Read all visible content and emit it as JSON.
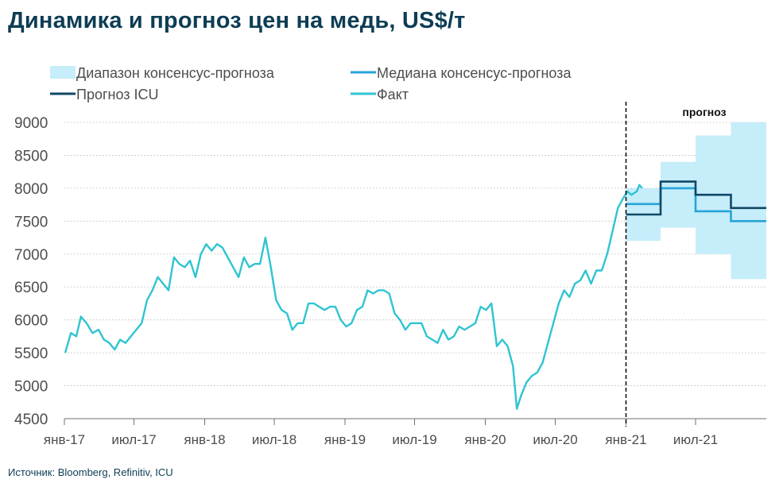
{
  "page": {
    "title": "Динамика и прогноз цен на медь, US$/т",
    "source": "Источник: Bloomberg, Refinitiv, ICU"
  },
  "colors": {
    "fact": "#2fc4d2",
    "median": "#26a4d8",
    "icu": "#0f4866",
    "range": "#c6edfa",
    "grid": "#c8c8c8",
    "text": "#4d4d4d",
    "title": "#0d3d55"
  },
  "chart_data": {
    "type": "line",
    "title": "Динамика и прогноз цен на медь, US$/т",
    "xlabel": "",
    "ylabel": "",
    "ylim": [
      4500,
      9000
    ],
    "yticks": [
      4500,
      5000,
      5500,
      6000,
      6500,
      7000,
      7500,
      8000,
      8500,
      9000
    ],
    "xlim": [
      "2017-01",
      "2022-01"
    ],
    "xticks": [
      {
        "date": "2017-01",
        "label": "янв-17"
      },
      {
        "date": "2017-07",
        "label": "июл-17"
      },
      {
        "date": "2018-01",
        "label": "янв-18"
      },
      {
        "date": "2018-07",
        "label": "июл-18"
      },
      {
        "date": "2019-01",
        "label": "янв-19"
      },
      {
        "date": "2019-07",
        "label": "июл-19"
      },
      {
        "date": "2020-01",
        "label": "янв-20"
      },
      {
        "date": "2020-07",
        "label": "июл-20"
      },
      {
        "date": "2021-01",
        "label": "янв-21"
      },
      {
        "date": "2021-07",
        "label": "июл-21"
      }
    ],
    "grid": true,
    "legend_position": "top",
    "forecast_start": "2021-01",
    "forecast_label": "прогноз",
    "series": [
      {
        "name": "Диапазон консенсус-прогноза",
        "kind": "band",
        "periods": [
          {
            "from": "2021-01",
            "to": "2021-04",
            "low": 7200,
            "high": 8000
          },
          {
            "from": "2021-04",
            "to": "2021-07",
            "low": 7400,
            "high": 8400
          },
          {
            "from": "2021-07",
            "to": "2021-10",
            "low": 7000,
            "high": 8800
          },
          {
            "from": "2021-10",
            "to": "2022-01",
            "low": 6620,
            "high": 9000
          }
        ]
      },
      {
        "name": "Медиана консенсус-прогноза",
        "kind": "step",
        "periods": [
          {
            "from": "2021-01",
            "to": "2021-04",
            "value": 7760
          },
          {
            "from": "2021-04",
            "to": "2021-07",
            "value": 8000
          },
          {
            "from": "2021-07",
            "to": "2021-10",
            "value": 7650
          },
          {
            "from": "2021-10",
            "to": "2022-01",
            "value": 7500
          }
        ]
      },
      {
        "name": "Прогноз ICU",
        "kind": "step",
        "periods": [
          {
            "from": "2021-01",
            "to": "2021-04",
            "value": 7600
          },
          {
            "from": "2021-04",
            "to": "2021-07",
            "value": 8100
          },
          {
            "from": "2021-07",
            "to": "2021-10",
            "value": 7900
          },
          {
            "from": "2021-10",
            "to": "2022-01",
            "value": 7700
          }
        ]
      },
      {
        "name": "Факт",
        "kind": "line",
        "points": [
          [
            "2017-01-03",
            5500
          ],
          [
            "2017-01-18",
            5800
          ],
          [
            "2017-02-01",
            5750
          ],
          [
            "2017-02-13",
            6050
          ],
          [
            "2017-02-28",
            5950
          ],
          [
            "2017-03-15",
            5800
          ],
          [
            "2017-03-31",
            5850
          ],
          [
            "2017-04-14",
            5700
          ],
          [
            "2017-04-28",
            5650
          ],
          [
            "2017-05-12",
            5550
          ],
          [
            "2017-05-26",
            5700
          ],
          [
            "2017-06-09",
            5650
          ],
          [
            "2017-06-23",
            5750
          ],
          [
            "2017-07-07",
            5850
          ],
          [
            "2017-07-21",
            5950
          ],
          [
            "2017-08-04",
            6300
          ],
          [
            "2017-08-18",
            6450
          ],
          [
            "2017-09-01",
            6650
          ],
          [
            "2017-09-15",
            6550
          ],
          [
            "2017-09-29",
            6450
          ],
          [
            "2017-10-13",
            6950
          ],
          [
            "2017-10-27",
            6850
          ],
          [
            "2017-11-10",
            6800
          ],
          [
            "2017-11-24",
            6900
          ],
          [
            "2017-12-08",
            6650
          ],
          [
            "2017-12-22",
            7000
          ],
          [
            "2018-01-05",
            7150
          ],
          [
            "2018-01-19",
            7050
          ],
          [
            "2018-02-02",
            7150
          ],
          [
            "2018-02-16",
            7100
          ],
          [
            "2018-03-02",
            6950
          ],
          [
            "2018-03-16",
            6800
          ],
          [
            "2018-03-30",
            6650
          ],
          [
            "2018-04-13",
            6950
          ],
          [
            "2018-04-27",
            6800
          ],
          [
            "2018-05-11",
            6850
          ],
          [
            "2018-05-25",
            6850
          ],
          [
            "2018-06-08",
            7250
          ],
          [
            "2018-06-22",
            6800
          ],
          [
            "2018-07-06",
            6300
          ],
          [
            "2018-07-20",
            6150
          ],
          [
            "2018-08-03",
            6100
          ],
          [
            "2018-08-17",
            5850
          ],
          [
            "2018-08-31",
            5950
          ],
          [
            "2018-09-14",
            5950
          ],
          [
            "2018-09-28",
            6250
          ],
          [
            "2018-10-12",
            6250
          ],
          [
            "2018-10-26",
            6200
          ],
          [
            "2018-11-09",
            6150
          ],
          [
            "2018-11-23",
            6200
          ],
          [
            "2018-12-07",
            6200
          ],
          [
            "2018-12-21",
            6000
          ],
          [
            "2019-01-04",
            5900
          ],
          [
            "2019-01-18",
            5950
          ],
          [
            "2019-02-01",
            6150
          ],
          [
            "2019-02-15",
            6200
          ],
          [
            "2019-03-01",
            6450
          ],
          [
            "2019-03-15",
            6400
          ],
          [
            "2019-03-29",
            6450
          ],
          [
            "2019-04-12",
            6450
          ],
          [
            "2019-04-26",
            6400
          ],
          [
            "2019-05-10",
            6100
          ],
          [
            "2019-05-24",
            6000
          ],
          [
            "2019-06-07",
            5850
          ],
          [
            "2019-06-21",
            5950
          ],
          [
            "2019-07-05",
            5950
          ],
          [
            "2019-07-19",
            5950
          ],
          [
            "2019-08-02",
            5750
          ],
          [
            "2019-08-16",
            5700
          ],
          [
            "2019-08-30",
            5650
          ],
          [
            "2019-09-13",
            5850
          ],
          [
            "2019-09-27",
            5700
          ],
          [
            "2019-10-11",
            5750
          ],
          [
            "2019-10-25",
            5900
          ],
          [
            "2019-11-08",
            5850
          ],
          [
            "2019-11-22",
            5900
          ],
          [
            "2019-12-06",
            5950
          ],
          [
            "2019-12-20",
            6200
          ],
          [
            "2020-01-03",
            6150
          ],
          [
            "2020-01-17",
            6250
          ],
          [
            "2020-01-31",
            5600
          ],
          [
            "2020-02-14",
            5700
          ],
          [
            "2020-02-28",
            5600
          ],
          [
            "2020-03-13",
            5300
          ],
          [
            "2020-03-23",
            4650
          ],
          [
            "2020-04-03",
            4850
          ],
          [
            "2020-04-17",
            5050
          ],
          [
            "2020-05-01",
            5150
          ],
          [
            "2020-05-15",
            5200
          ],
          [
            "2020-05-29",
            5350
          ],
          [
            "2020-06-12",
            5650
          ],
          [
            "2020-06-26",
            5950
          ],
          [
            "2020-07-10",
            6250
          ],
          [
            "2020-07-24",
            6450
          ],
          [
            "2020-08-07",
            6350
          ],
          [
            "2020-08-21",
            6550
          ],
          [
            "2020-09-04",
            6600
          ],
          [
            "2020-09-18",
            6750
          ],
          [
            "2020-10-02",
            6550
          ],
          [
            "2020-10-16",
            6750
          ],
          [
            "2020-10-30",
            6750
          ],
          [
            "2020-11-13",
            7000
          ],
          [
            "2020-11-27",
            7350
          ],
          [
            "2020-12-11",
            7700
          ],
          [
            "2020-12-25",
            7850
          ],
          [
            "2021-01-05",
            7950
          ],
          [
            "2021-01-15",
            7900
          ],
          [
            "2021-01-29",
            7950
          ],
          [
            "2021-02-05",
            8050
          ],
          [
            "2021-02-12",
            8000
          ]
        ]
      }
    ]
  }
}
